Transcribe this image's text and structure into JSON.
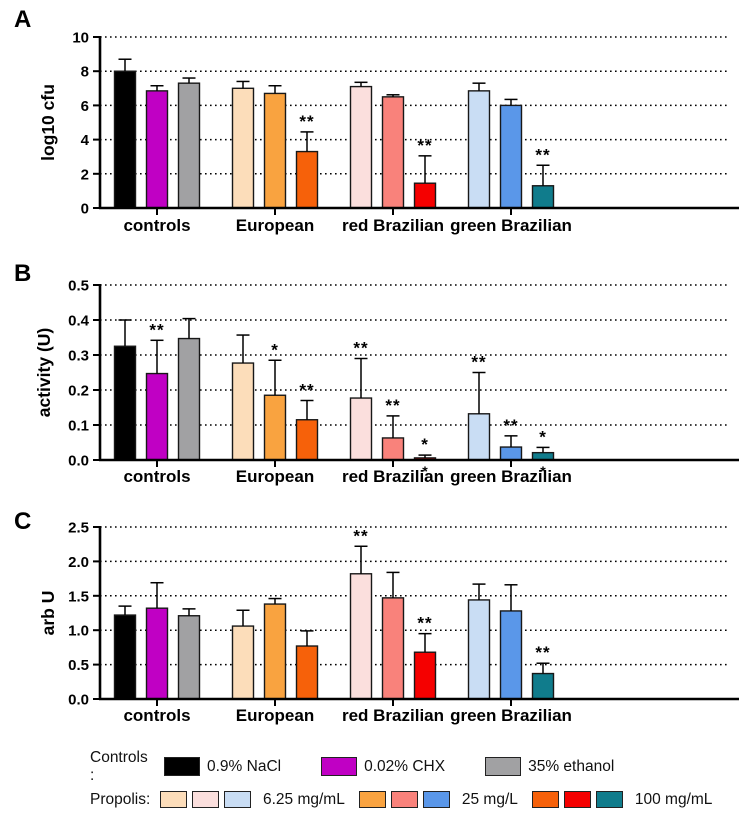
{
  "bar_colors": [
    [
      "#000000",
      "#C000C4",
      "#A1A1A3"
    ],
    [
      "#FCDDBA",
      "#F9A340",
      "#F6610A"
    ],
    [
      "#FBDFDD",
      "#F9827B",
      "#F50000"
    ],
    [
      "#C9DDF4",
      "#5A97E9",
      "#107C8C"
    ]
  ],
  "chart_data": [
    {
      "panel": "A",
      "type": "bar",
      "ylabel": "log10 cfu",
      "ylim": [
        0,
        10
      ],
      "yticks": [
        0,
        2,
        4,
        6,
        8,
        10
      ],
      "ytick_labels": [
        "0",
        "2",
        "4",
        "6",
        "8",
        "10"
      ],
      "grid": "dotted horizontal",
      "categories": [
        "controls",
        "European",
        "red Brazilian",
        "green Brazilian"
      ],
      "series": [
        {
          "category": "controls",
          "values": [
            8.0,
            6.85,
            7.3
          ],
          "errors": [
            0.7,
            0.3,
            0.3
          ],
          "sig": [
            "",
            "",
            ""
          ]
        },
        {
          "category": "European",
          "values": [
            7.0,
            6.7,
            3.3
          ],
          "errors": [
            0.4,
            0.45,
            1.15
          ],
          "sig": [
            "",
            "",
            "**"
          ]
        },
        {
          "category": "red Brazilian",
          "values": [
            7.1,
            6.5,
            1.45
          ],
          "errors": [
            0.25,
            0.12,
            1.6
          ],
          "sig": [
            "",
            "",
            "**"
          ]
        },
        {
          "category": "green Brazilian",
          "values": [
            6.85,
            6.0,
            1.3
          ],
          "errors": [
            0.45,
            0.35,
            1.2
          ],
          "sig": [
            "",
            "",
            "**"
          ]
        }
      ]
    },
    {
      "panel": "B",
      "type": "bar",
      "ylabel": "activity (U)",
      "ylim": [
        0,
        0.5
      ],
      "yticks": [
        0.0,
        0.1,
        0.2,
        0.3,
        0.4,
        0.5
      ],
      "ytick_labels": [
        "0.0",
        "0.1",
        "0.2",
        "0.3",
        "0.4",
        "0.5"
      ],
      "grid": "dotted horizontal",
      "categories": [
        "controls",
        "European",
        "red Brazilian",
        "green Brazilian"
      ],
      "series": [
        {
          "category": "controls",
          "values": [
            0.325,
            0.247,
            0.347
          ],
          "errors": [
            0.075,
            0.095,
            0.057
          ],
          "sig": [
            "",
            "**",
            ""
          ]
        },
        {
          "category": "European",
          "values": [
            0.277,
            0.185,
            0.115
          ],
          "errors": [
            0.08,
            0.1,
            0.055
          ],
          "sig": [
            "",
            "*",
            "**"
          ]
        },
        {
          "category": "red Brazilian",
          "values": [
            0.177,
            0.063,
            0.006
          ],
          "errors": [
            0.113,
            0.063,
            0.008
          ],
          "sig": [
            "**",
            "**",
            "*"
          ]
        },
        {
          "category": "green Brazilian",
          "values": [
            0.132,
            0.037,
            0.021
          ],
          "errors": [
            0.118,
            0.032,
            0.015
          ],
          "sig": [
            "**",
            "**",
            "*"
          ]
        }
      ],
      "below_axis_marks": [
        {
          "category_index": 2,
          "bar_index": 2,
          "mark": "*"
        },
        {
          "category_index": 3,
          "bar_index": 2,
          "mark": "*"
        }
      ]
    },
    {
      "panel": "C",
      "type": "bar",
      "ylabel": "arb U",
      "ylim": [
        0,
        2.5
      ],
      "yticks": [
        0.0,
        0.5,
        1.0,
        1.5,
        2.0,
        2.5
      ],
      "ytick_labels": [
        "0.0",
        "0.5",
        "1.0",
        "1.5",
        "2.0",
        "2.5"
      ],
      "grid": "dotted horizontal",
      "categories": [
        "controls",
        "European",
        "red Brazilian",
        "green Brazilian"
      ],
      "series": [
        {
          "category": "controls",
          "values": [
            1.22,
            1.32,
            1.21
          ],
          "errors": [
            0.13,
            0.37,
            0.1
          ],
          "sig": [
            "",
            "",
            ""
          ]
        },
        {
          "category": "European",
          "values": [
            1.06,
            1.38,
            0.77
          ],
          "errors": [
            0.23,
            0.08,
            0.22
          ],
          "sig": [
            "",
            "",
            ""
          ]
        },
        {
          "category": "red Brazilian",
          "values": [
            1.82,
            1.47,
            0.68
          ],
          "errors": [
            0.4,
            0.37,
            0.27
          ],
          "sig": [
            "**",
            "",
            "**"
          ]
        },
        {
          "category": "green Brazilian",
          "values": [
            1.44,
            1.28,
            0.37
          ],
          "errors": [
            0.23,
            0.38,
            0.15
          ],
          "sig": [
            "",
            "",
            "**"
          ]
        }
      ]
    }
  ],
  "legend": {
    "rows": [
      {
        "label": "Controls :",
        "entries": [
          {
            "colors": [
              "#000000"
            ],
            "text": "0.9% NaCl"
          },
          {
            "colors": [
              "#C000C4"
            ],
            "text": "0.02% CHX"
          },
          {
            "colors": [
              "#A1A1A3"
            ],
            "text": "35% ethanol"
          }
        ]
      },
      {
        "label": "Propolis:",
        "entries": [
          {
            "colors": [
              "#FCDDBA",
              "#FBDFDD",
              "#C9DDF4"
            ],
            "text": "6.25 mg/mL"
          },
          {
            "colors": [
              "#F9A340",
              "#F9827B",
              "#5A97E9"
            ],
            "text": "25 mg/L"
          },
          {
            "colors": [
              "#F6610A",
              "#F50000",
              "#107C8C"
            ],
            "text": "100 mg/mL"
          }
        ]
      }
    ]
  }
}
